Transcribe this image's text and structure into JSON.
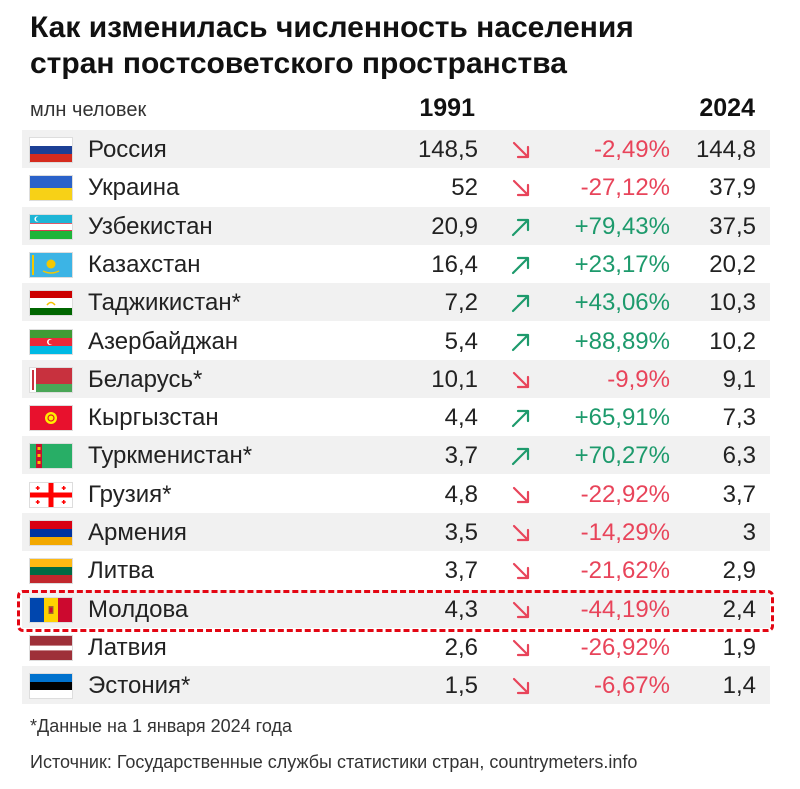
{
  "title_line1": "Как изменилась численность населения",
  "title_line2": "стран постсоветского пространства",
  "unit_label": "млн человек",
  "col_1991": "1991",
  "col_2024": "2024",
  "footnote": "*Данные на 1 января 2024 года",
  "source": "Источник: Государственные службы статистики стран, countrymeters.info",
  "colors": {
    "up": "#1d9a6c",
    "down": "#e8445a",
    "highlight": "#e30613"
  },
  "chart_data": {
    "type": "table",
    "title": "Как изменилась численность населения стран постсоветского пространства",
    "unit": "млн человек",
    "columns": [
      "1991",
      "2024"
    ],
    "rows": [
      {
        "country": "Россия",
        "flag": "russia-flag-icon",
        "v1991": "148,5",
        "pct": "-2,49%",
        "v2024": "144,8",
        "trend": "down",
        "highlighted": false
      },
      {
        "country": "Украина",
        "flag": "ukraine-flag-icon",
        "v1991": "52",
        "pct": "-27,12%",
        "v2024": "37,9",
        "trend": "down",
        "highlighted": false
      },
      {
        "country": "Узбекистан",
        "flag": "uzbekistan-flag-icon",
        "v1991": "20,9",
        "pct": "+79,43%",
        "v2024": "37,5",
        "trend": "up",
        "highlighted": false
      },
      {
        "country": "Казахстан",
        "flag": "kazakhstan-flag-icon",
        "v1991": "16,4",
        "pct": "+23,17%",
        "v2024": "20,2",
        "trend": "up",
        "highlighted": false
      },
      {
        "country": "Таджикистан*",
        "flag": "tajikistan-flag-icon",
        "v1991": "7,2",
        "pct": "+43,06%",
        "v2024": "10,3",
        "trend": "up",
        "highlighted": false
      },
      {
        "country": "Азербайджан",
        "flag": "azerbaijan-flag-icon",
        "v1991": "5,4",
        "pct": "+88,89%",
        "v2024": "10,2",
        "trend": "up",
        "highlighted": false
      },
      {
        "country": "Беларусь*",
        "flag": "belarus-flag-icon",
        "v1991": "10,1",
        "pct": "-9,9%",
        "v2024": "9,1",
        "trend": "down",
        "highlighted": false
      },
      {
        "country": "Кыргызстан",
        "flag": "kyrgyzstan-flag-icon",
        "v1991": "4,4",
        "pct": "+65,91%",
        "v2024": "7,3",
        "trend": "up",
        "highlighted": false
      },
      {
        "country": "Туркменистан*",
        "flag": "turkmenistan-flag-icon",
        "v1991": "3,7",
        "pct": "+70,27%",
        "v2024": "6,3",
        "trend": "up",
        "highlighted": false
      },
      {
        "country": "Грузия*",
        "flag": "georgia-flag-icon",
        "v1991": "4,8",
        "pct": "-22,92%",
        "v2024": "3,7",
        "trend": "down",
        "highlighted": false
      },
      {
        "country": "Армения",
        "flag": "armenia-flag-icon",
        "v1991": "3,5",
        "pct": "-14,29%",
        "v2024": "3",
        "trend": "down",
        "highlighted": false
      },
      {
        "country": "Литва",
        "flag": "lithuania-flag-icon",
        "v1991": "3,7",
        "pct": "-21,62%",
        "v2024": "2,9",
        "trend": "down",
        "highlighted": false
      },
      {
        "country": "Молдова",
        "flag": "moldova-flag-icon",
        "v1991": "4,3",
        "pct": "-44,19%",
        "v2024": "2,4",
        "trend": "down",
        "highlighted": true
      },
      {
        "country": "Латвия",
        "flag": "latvia-flag-icon",
        "v1991": "2,6",
        "pct": "-26,92%",
        "v2024": "1,9",
        "trend": "down",
        "highlighted": false
      },
      {
        "country": "Эстония*",
        "flag": "estonia-flag-icon",
        "v1991": "1,5",
        "pct": "-6,67%",
        "v2024": "1,4",
        "trend": "down",
        "highlighted": false
      }
    ]
  }
}
